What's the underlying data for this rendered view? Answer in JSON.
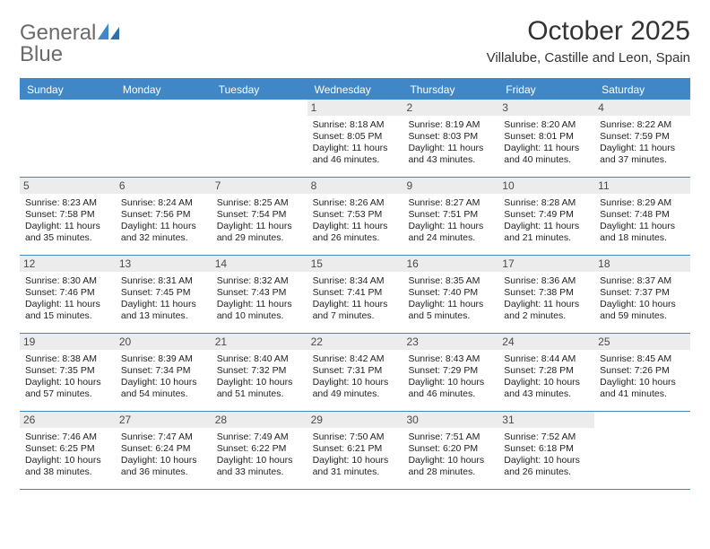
{
  "brand": {
    "word1": "General",
    "word2": "Blue"
  },
  "title": "October 2025",
  "subtitle": "Villalube, Castille and Leon, Spain",
  "colors": {
    "accent": "#3f87c6",
    "logo_gray": "#6b6b6b",
    "daynum_bg": "#ececec",
    "text": "#222222",
    "title_color": "#333333"
  },
  "fontsizes": {
    "title": 30,
    "subtitle": 15,
    "header": 12,
    "daynum": 12,
    "body": 10.5,
    "logo": 24
  },
  "headers": [
    "Sunday",
    "Monday",
    "Tuesday",
    "Wednesday",
    "Thursday",
    "Friday",
    "Saturday"
  ],
  "weeks": [
    [
      {
        "n": "",
        "empty": true
      },
      {
        "n": "",
        "empty": true
      },
      {
        "n": "",
        "empty": true
      },
      {
        "n": "1",
        "sr": "Sunrise: 8:18 AM",
        "ss": "Sunset: 8:05 PM",
        "d1": "Daylight: 11 hours",
        "d2": "and 46 minutes."
      },
      {
        "n": "2",
        "sr": "Sunrise: 8:19 AM",
        "ss": "Sunset: 8:03 PM",
        "d1": "Daylight: 11 hours",
        "d2": "and 43 minutes."
      },
      {
        "n": "3",
        "sr": "Sunrise: 8:20 AM",
        "ss": "Sunset: 8:01 PM",
        "d1": "Daylight: 11 hours",
        "d2": "and 40 minutes."
      },
      {
        "n": "4",
        "sr": "Sunrise: 8:22 AM",
        "ss": "Sunset: 7:59 PM",
        "d1": "Daylight: 11 hours",
        "d2": "and 37 minutes."
      }
    ],
    [
      {
        "n": "5",
        "sr": "Sunrise: 8:23 AM",
        "ss": "Sunset: 7:58 PM",
        "d1": "Daylight: 11 hours",
        "d2": "and 35 minutes."
      },
      {
        "n": "6",
        "sr": "Sunrise: 8:24 AM",
        "ss": "Sunset: 7:56 PM",
        "d1": "Daylight: 11 hours",
        "d2": "and 32 minutes."
      },
      {
        "n": "7",
        "sr": "Sunrise: 8:25 AM",
        "ss": "Sunset: 7:54 PM",
        "d1": "Daylight: 11 hours",
        "d2": "and 29 minutes."
      },
      {
        "n": "8",
        "sr": "Sunrise: 8:26 AM",
        "ss": "Sunset: 7:53 PM",
        "d1": "Daylight: 11 hours",
        "d2": "and 26 minutes."
      },
      {
        "n": "9",
        "sr": "Sunrise: 8:27 AM",
        "ss": "Sunset: 7:51 PM",
        "d1": "Daylight: 11 hours",
        "d2": "and 24 minutes."
      },
      {
        "n": "10",
        "sr": "Sunrise: 8:28 AM",
        "ss": "Sunset: 7:49 PM",
        "d1": "Daylight: 11 hours",
        "d2": "and 21 minutes."
      },
      {
        "n": "11",
        "sr": "Sunrise: 8:29 AM",
        "ss": "Sunset: 7:48 PM",
        "d1": "Daylight: 11 hours",
        "d2": "and 18 minutes."
      }
    ],
    [
      {
        "n": "12",
        "sr": "Sunrise: 8:30 AM",
        "ss": "Sunset: 7:46 PM",
        "d1": "Daylight: 11 hours",
        "d2": "and 15 minutes."
      },
      {
        "n": "13",
        "sr": "Sunrise: 8:31 AM",
        "ss": "Sunset: 7:45 PM",
        "d1": "Daylight: 11 hours",
        "d2": "and 13 minutes."
      },
      {
        "n": "14",
        "sr": "Sunrise: 8:32 AM",
        "ss": "Sunset: 7:43 PM",
        "d1": "Daylight: 11 hours",
        "d2": "and 10 minutes."
      },
      {
        "n": "15",
        "sr": "Sunrise: 8:34 AM",
        "ss": "Sunset: 7:41 PM",
        "d1": "Daylight: 11 hours",
        "d2": "and 7 minutes."
      },
      {
        "n": "16",
        "sr": "Sunrise: 8:35 AM",
        "ss": "Sunset: 7:40 PM",
        "d1": "Daylight: 11 hours",
        "d2": "and 5 minutes."
      },
      {
        "n": "17",
        "sr": "Sunrise: 8:36 AM",
        "ss": "Sunset: 7:38 PM",
        "d1": "Daylight: 11 hours",
        "d2": "and 2 minutes."
      },
      {
        "n": "18",
        "sr": "Sunrise: 8:37 AM",
        "ss": "Sunset: 7:37 PM",
        "d1": "Daylight: 10 hours",
        "d2": "and 59 minutes."
      }
    ],
    [
      {
        "n": "19",
        "sr": "Sunrise: 8:38 AM",
        "ss": "Sunset: 7:35 PM",
        "d1": "Daylight: 10 hours",
        "d2": "and 57 minutes."
      },
      {
        "n": "20",
        "sr": "Sunrise: 8:39 AM",
        "ss": "Sunset: 7:34 PM",
        "d1": "Daylight: 10 hours",
        "d2": "and 54 minutes."
      },
      {
        "n": "21",
        "sr": "Sunrise: 8:40 AM",
        "ss": "Sunset: 7:32 PM",
        "d1": "Daylight: 10 hours",
        "d2": "and 51 minutes."
      },
      {
        "n": "22",
        "sr": "Sunrise: 8:42 AM",
        "ss": "Sunset: 7:31 PM",
        "d1": "Daylight: 10 hours",
        "d2": "and 49 minutes."
      },
      {
        "n": "23",
        "sr": "Sunrise: 8:43 AM",
        "ss": "Sunset: 7:29 PM",
        "d1": "Daylight: 10 hours",
        "d2": "and 46 minutes."
      },
      {
        "n": "24",
        "sr": "Sunrise: 8:44 AM",
        "ss": "Sunset: 7:28 PM",
        "d1": "Daylight: 10 hours",
        "d2": "and 43 minutes."
      },
      {
        "n": "25",
        "sr": "Sunrise: 8:45 AM",
        "ss": "Sunset: 7:26 PM",
        "d1": "Daylight: 10 hours",
        "d2": "and 41 minutes."
      }
    ],
    [
      {
        "n": "26",
        "sr": "Sunrise: 7:46 AM",
        "ss": "Sunset: 6:25 PM",
        "d1": "Daylight: 10 hours",
        "d2": "and 38 minutes."
      },
      {
        "n": "27",
        "sr": "Sunrise: 7:47 AM",
        "ss": "Sunset: 6:24 PM",
        "d1": "Daylight: 10 hours",
        "d2": "and 36 minutes."
      },
      {
        "n": "28",
        "sr": "Sunrise: 7:49 AM",
        "ss": "Sunset: 6:22 PM",
        "d1": "Daylight: 10 hours",
        "d2": "and 33 minutes."
      },
      {
        "n": "29",
        "sr": "Sunrise: 7:50 AM",
        "ss": "Sunset: 6:21 PM",
        "d1": "Daylight: 10 hours",
        "d2": "and 31 minutes."
      },
      {
        "n": "30",
        "sr": "Sunrise: 7:51 AM",
        "ss": "Sunset: 6:20 PM",
        "d1": "Daylight: 10 hours",
        "d2": "and 28 minutes."
      },
      {
        "n": "31",
        "sr": "Sunrise: 7:52 AM",
        "ss": "Sunset: 6:18 PM",
        "d1": "Daylight: 10 hours",
        "d2": "and 26 minutes."
      },
      {
        "n": "",
        "empty": true
      }
    ]
  ]
}
